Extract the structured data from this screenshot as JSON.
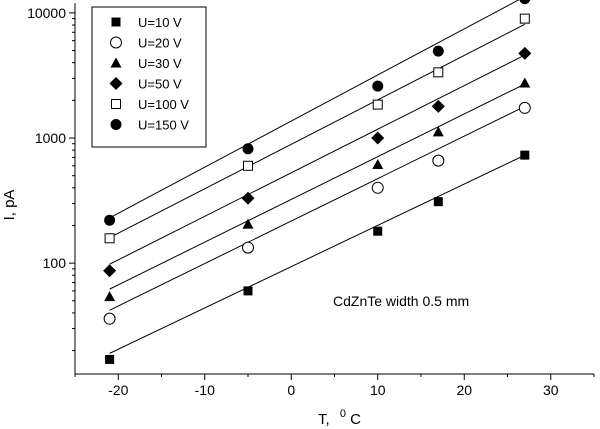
{
  "chart_data": {
    "type": "scatter",
    "xlabel": "T,",
    "xlabel_unit_sup": "0",
    "xlabel_unit": "C",
    "ylabel": "I, pA",
    "yscale": "log",
    "xlim": [
      -25,
      35
    ],
    "ylim": [
      13,
      12000
    ],
    "x_ticks": [
      -20,
      -10,
      0,
      10,
      20,
      30
    ],
    "x_tick_labels": [
      "-20",
      "-10",
      "0",
      "10",
      "20",
      "30"
    ],
    "y_ticks": [
      100,
      1000,
      10000
    ],
    "y_tick_labels": [
      "100",
      "1000",
      "10000"
    ],
    "legend_position": "top-left",
    "annotation": "CdZnTe width 0.5 mm",
    "x": [
      -21,
      -5,
      10,
      17,
      27
    ],
    "series": [
      {
        "name": "U=10 V",
        "marker": "square-filled",
        "values": [
          17,
          60,
          180,
          310,
          730
        ],
        "fit": [
          19,
          730
        ]
      },
      {
        "name": "U=20 V",
        "marker": "circle-open",
        "values": [
          36,
          133,
          400,
          660,
          1740
        ],
        "fit": [
          42,
          1790
        ]
      },
      {
        "name": "U=30 V",
        "marker": "triangle-filled",
        "values": [
          54,
          205,
          615,
          1120,
          2750
        ],
        "fit": [
          62,
          2700
        ]
      },
      {
        "name": "U=50 V",
        "marker": "diamond-filled",
        "values": [
          87,
          330,
          1000,
          1790,
          4750
        ],
        "fit": [
          98,
          4600
        ]
      },
      {
        "name": "U=100 V",
        "marker": "square-open",
        "values": [
          158,
          600,
          1850,
          3350,
          9000
        ],
        "fit": [
          160,
          8100
        ]
      },
      {
        "name": "U=150 V",
        "marker": "circle-filled",
        "values": [
          220,
          820,
          2600,
          4950,
          13000
        ],
        "fit": [
          230,
          13500
        ]
      }
    ]
  }
}
